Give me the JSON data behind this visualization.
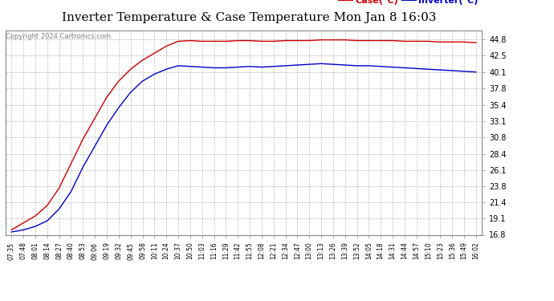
{
  "title": "Inverter Temperature & Case Temperature Mon Jan 8 16:03",
  "copyright": "Copyright 2024 Cartronics.com",
  "legend_case": "Case(°C)",
  "legend_inverter": "Inverter(°C)",
  "ylim": [
    16.8,
    46.1
  ],
  "yticks": [
    16.8,
    19.1,
    21.4,
    23.8,
    26.1,
    28.4,
    30.8,
    33.1,
    35.4,
    37.8,
    40.1,
    42.5,
    44.8
  ],
  "background_color": "#ffffff",
  "grid_color": "#bbbbbb",
  "case_color": "#cc0000",
  "inverter_color": "#0000cc",
  "x_labels": [
    "07:35",
    "07:48",
    "08:01",
    "08:14",
    "08:27",
    "08:40",
    "08:53",
    "09:06",
    "09:19",
    "09:32",
    "09:45",
    "09:58",
    "10:11",
    "10:24",
    "10:37",
    "10:50",
    "11:03",
    "11:16",
    "11:29",
    "11:42",
    "11:55",
    "12:08",
    "12:21",
    "12:34",
    "12:47",
    "13:00",
    "13:13",
    "13:26",
    "13:39",
    "13:52",
    "14:05",
    "14:18",
    "14:31",
    "14:44",
    "14:57",
    "15:10",
    "15:23",
    "15:36",
    "15:49",
    "16:02"
  ],
  "case_values": [
    17.5,
    18.5,
    19.5,
    21.0,
    23.5,
    27.0,
    30.5,
    33.5,
    36.5,
    38.8,
    40.5,
    41.8,
    42.8,
    43.8,
    44.5,
    44.6,
    44.5,
    44.5,
    44.5,
    44.6,
    44.6,
    44.5,
    44.5,
    44.6,
    44.6,
    44.6,
    44.7,
    44.7,
    44.7,
    44.6,
    44.6,
    44.6,
    44.6,
    44.5,
    44.5,
    44.5,
    44.4,
    44.4,
    44.4,
    44.3
  ],
  "inverter_values": [
    17.2,
    17.5,
    18.0,
    18.8,
    20.5,
    23.0,
    26.5,
    29.5,
    32.5,
    35.0,
    37.2,
    38.8,
    39.8,
    40.5,
    41.0,
    40.9,
    40.8,
    40.7,
    40.7,
    40.8,
    40.9,
    40.8,
    40.9,
    41.0,
    41.1,
    41.2,
    41.3,
    41.2,
    41.1,
    41.0,
    41.0,
    40.9,
    40.8,
    40.7,
    40.6,
    40.5,
    40.4,
    40.3,
    40.2,
    40.1
  ],
  "title_fontsize": 11,
  "copyright_fontsize": 6,
  "legend_fontsize": 8,
  "tick_fontsize": 7
}
